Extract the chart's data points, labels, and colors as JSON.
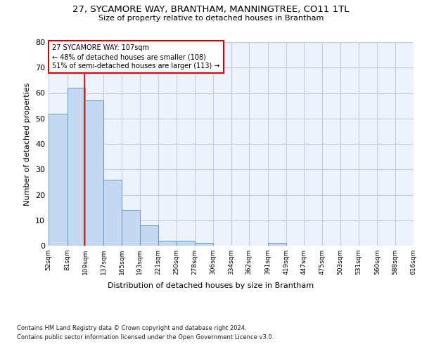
{
  "title1": "27, SYCAMORE WAY, BRANTHAM, MANNINGTREE, CO11 1TL",
  "title2": "Size of property relative to detached houses in Brantham",
  "xlabel": "Distribution of detached houses by size in Brantham",
  "ylabel": "Number of detached properties",
  "bin_edges": [
    52,
    81,
    109,
    137,
    165,
    193,
    221,
    250,
    278,
    306,
    334,
    362,
    391,
    419,
    447,
    475,
    503,
    531,
    560,
    588,
    616
  ],
  "bar_heights": [
    52,
    62,
    57,
    26,
    14,
    8,
    2,
    2,
    1,
    0,
    0,
    0,
    1,
    0,
    0,
    0,
    0,
    0,
    0,
    0
  ],
  "bar_color": "#c5d8f0",
  "bar_edge_color": "#5b9bd5",
  "red_line_x": 107,
  "annotation_line1": "27 SYCAMORE WAY: 107sqm",
  "annotation_line2": "← 48% of detached houses are smaller (108)",
  "annotation_line3": "51% of semi-detached houses are larger (113) →",
  "annotation_box_color": "#ffffff",
  "annotation_box_edge": "#cc0000",
  "red_line_color": "#cc0000",
  "ylim": [
    0,
    80
  ],
  "yticks": [
    0,
    10,
    20,
    30,
    40,
    50,
    60,
    70,
    80
  ],
  "footer1": "Contains HM Land Registry data © Crown copyright and database right 2024.",
  "footer2": "Contains public sector information licensed under the Open Government Licence v3.0.",
  "bg_color": "#eef2fa",
  "grid_color": "#c0cce0"
}
